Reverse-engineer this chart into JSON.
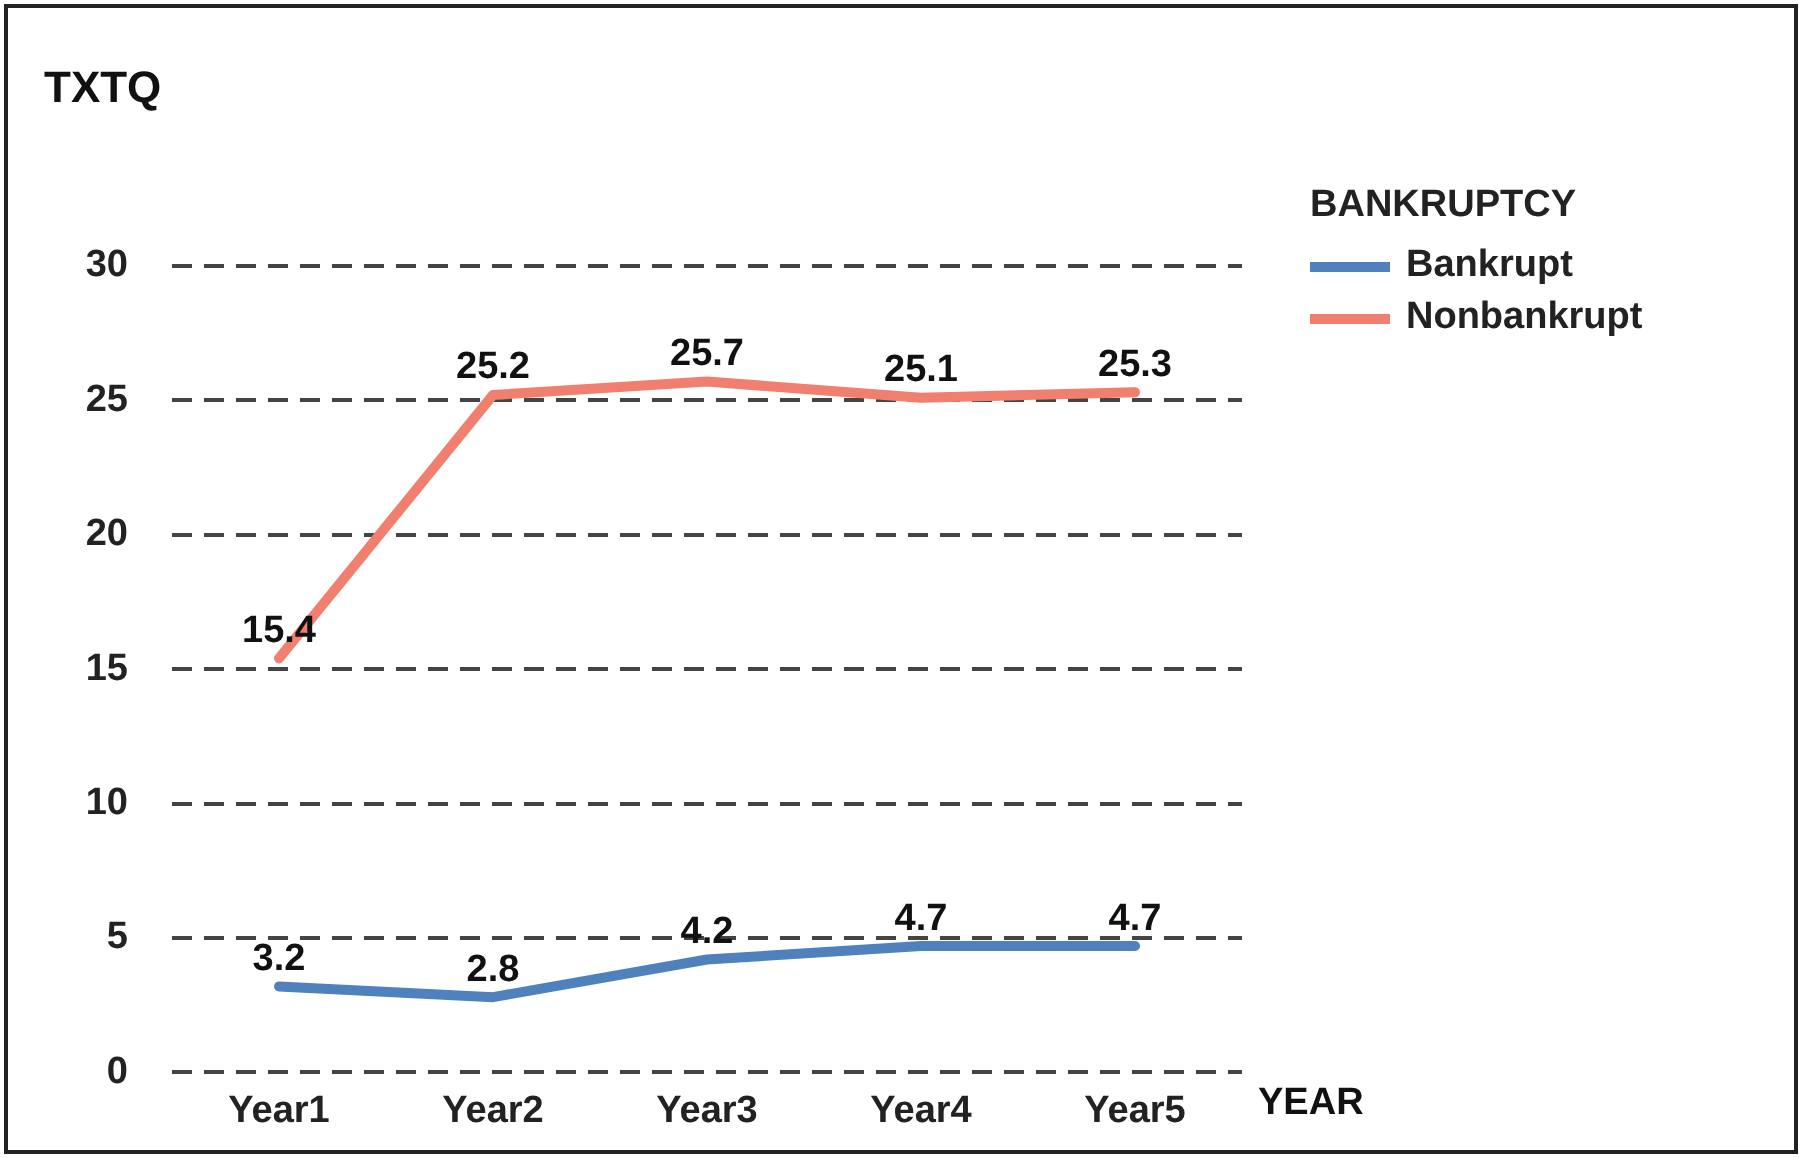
{
  "chart_data": {
    "type": "line",
    "ylabel": "TXTQ",
    "xlabel": "YEAR",
    "legend_title": "BANKRUPTCY",
    "categories": [
      "Year1",
      "Year2",
      "Year3",
      "Year4",
      "Year5"
    ],
    "series": [
      {
        "name": "Bankrupt",
        "color": "#4f81bd",
        "values": [
          3.2,
          2.8,
          4.2,
          4.7,
          4.7
        ]
      },
      {
        "name": "Nonbankrupt",
        "color": "#f07f6f",
        "values": [
          15.4,
          25.2,
          25.7,
          25.1,
          25.3
        ]
      }
    ],
    "ylim": [
      0,
      30
    ],
    "yticks": [
      0,
      5,
      10,
      15,
      20,
      25,
      30
    ],
    "grid": "y",
    "legend": "top right",
    "data_labels": true,
    "marker": "none",
    "line_style": "solid"
  }
}
